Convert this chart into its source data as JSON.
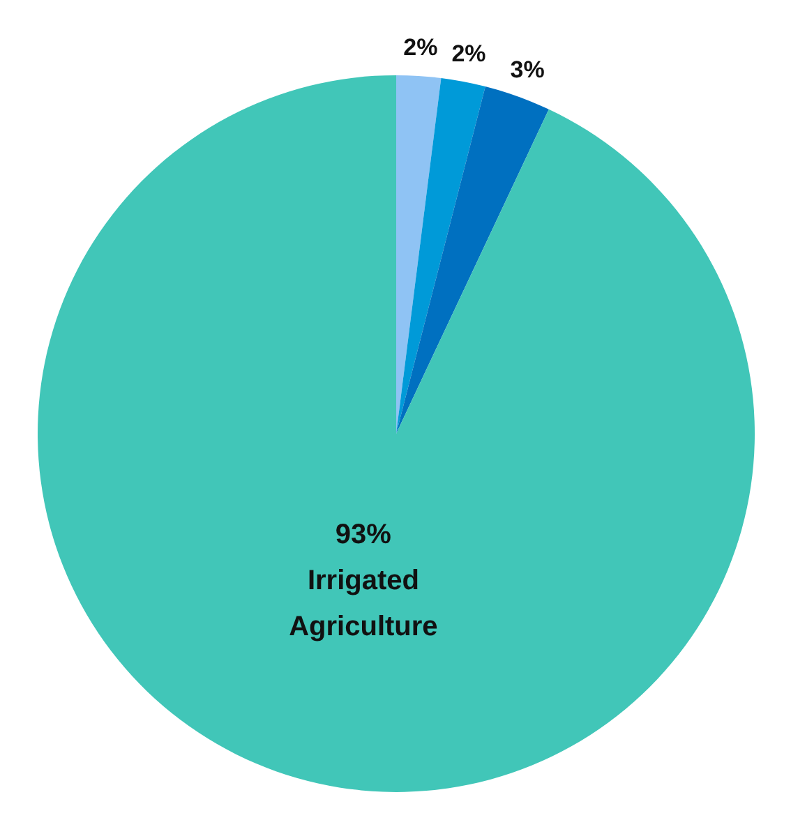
{
  "chart_data": {
    "type": "pie",
    "categories": [
      null,
      null,
      null,
      "Irrigated Agriculture"
    ],
    "values": [
      2,
      2,
      3,
      93
    ],
    "colors": [
      "#8fc3f4",
      "#009ad8",
      "#0070c0",
      "#41c6b8"
    ],
    "value_labels": [
      "2%",
      "2%",
      "3%",
      "93%"
    ]
  }
}
